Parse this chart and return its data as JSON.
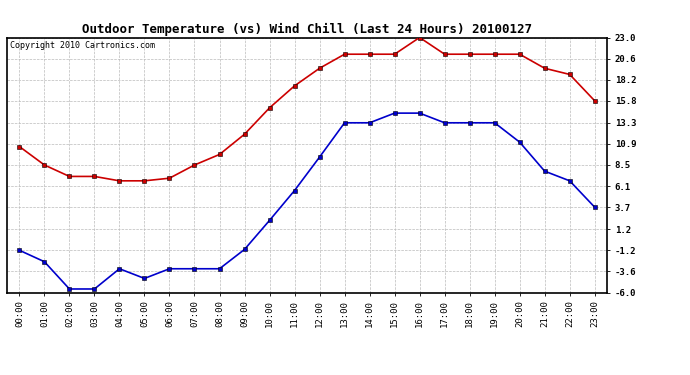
{
  "title": "Outdoor Temperature (vs) Wind Chill (Last 24 Hours) 20100127",
  "copyright": "Copyright 2010 Cartronics.com",
  "hours": [
    "00:00",
    "01:00",
    "02:00",
    "03:00",
    "04:00",
    "05:00",
    "06:00",
    "07:00",
    "08:00",
    "09:00",
    "10:00",
    "11:00",
    "12:00",
    "13:00",
    "14:00",
    "15:00",
    "16:00",
    "17:00",
    "18:00",
    "19:00",
    "20:00",
    "21:00",
    "22:00",
    "23:00"
  ],
  "outdoor_temp": [
    10.6,
    8.5,
    7.2,
    7.2,
    6.7,
    6.7,
    7.0,
    8.5,
    9.7,
    12.0,
    15.0,
    17.5,
    19.5,
    21.1,
    21.1,
    21.1,
    23.0,
    21.1,
    21.1,
    21.1,
    21.1,
    19.5,
    18.8,
    15.8
  ],
  "wind_chill": [
    -1.2,
    -2.5,
    -5.6,
    -5.6,
    -3.3,
    -4.4,
    -3.3,
    -3.3,
    -3.3,
    -1.1,
    2.2,
    5.6,
    9.4,
    13.3,
    13.3,
    14.4,
    14.4,
    13.3,
    13.3,
    13.3,
    11.1,
    7.8,
    6.7,
    3.7
  ],
  "temp_color": "#cc0000",
  "chill_color": "#0000cc",
  "marker": "s",
  "marker_size": 2.5,
  "line_width": 1.2,
  "ylim": [
    -6.0,
    23.0
  ],
  "yticks": [
    -6.0,
    -3.6,
    -1.2,
    1.2,
    3.7,
    6.1,
    8.5,
    10.9,
    13.3,
    15.8,
    18.2,
    20.6,
    23.0
  ],
  "background_color": "#ffffff",
  "grid_color": "#bbbbbb",
  "title_fontsize": 9,
  "copyright_fontsize": 6,
  "tick_fontsize": 6.5
}
